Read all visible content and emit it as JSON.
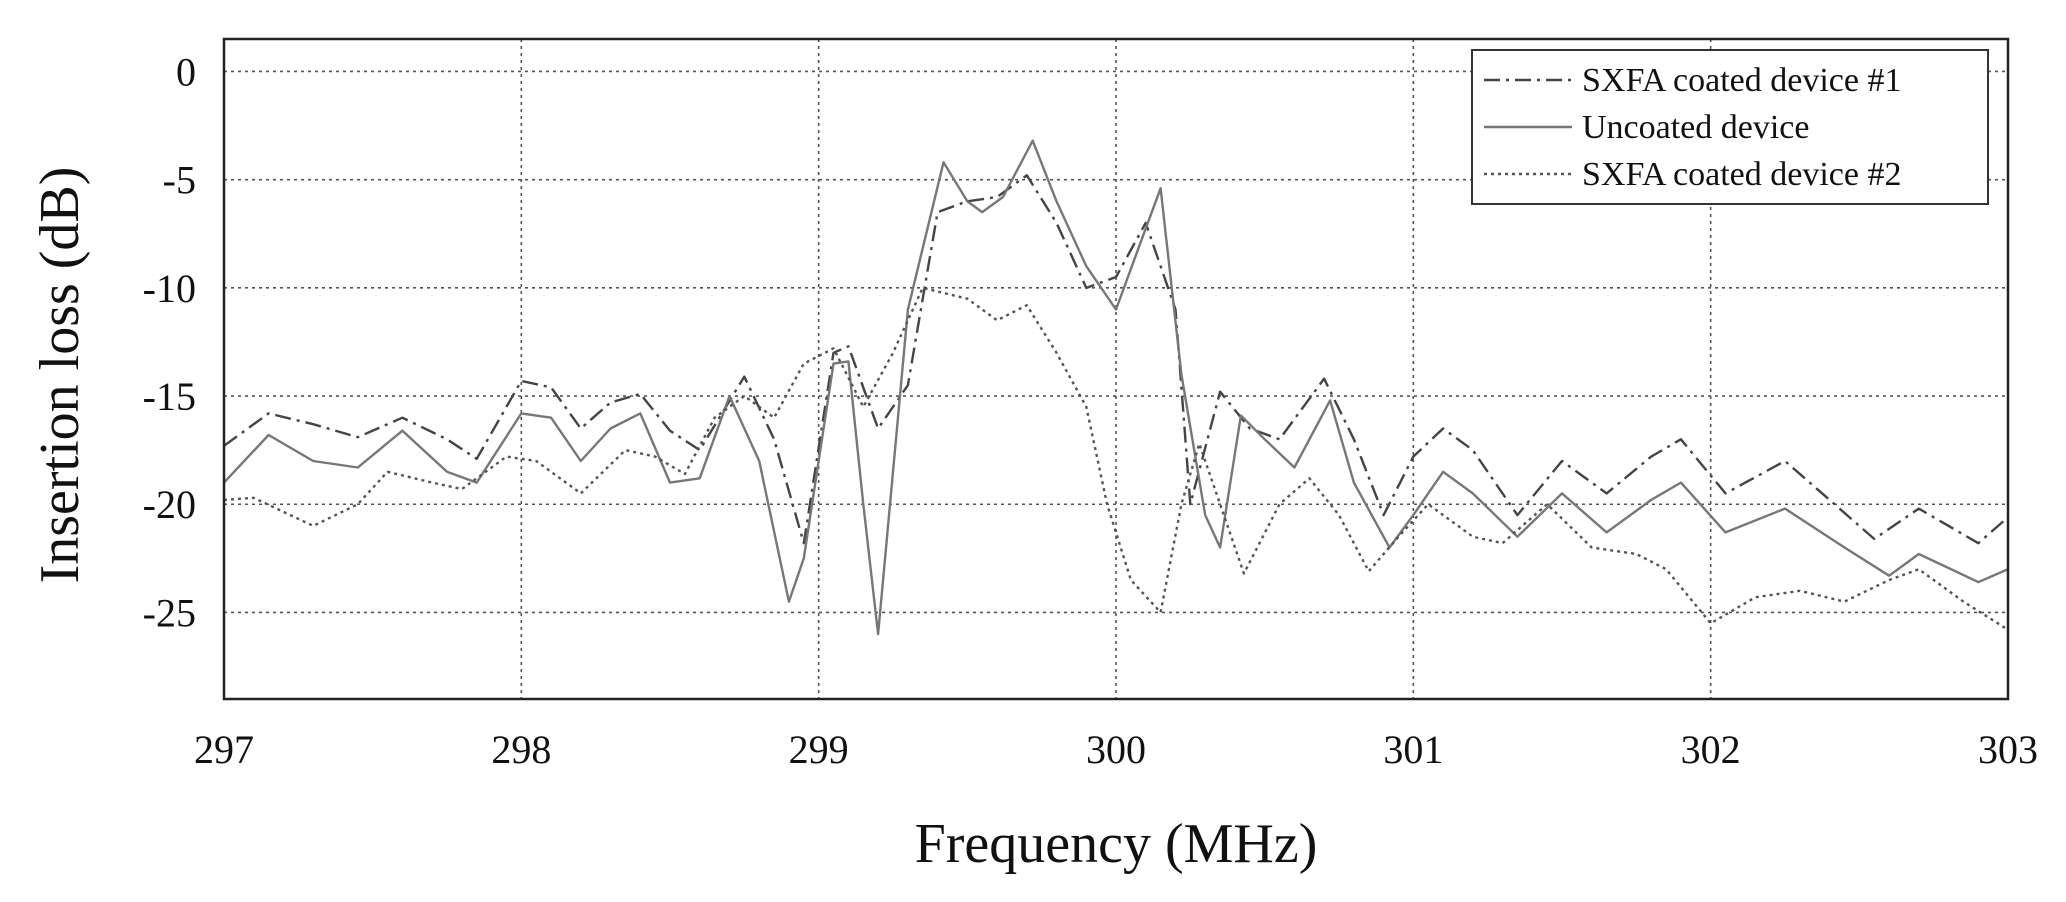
{
  "chart_data": {
    "type": "line",
    "title": "",
    "xlabel": "Frequency (MHz)",
    "ylabel": "Insertion loss (dB)",
    "xlim": [
      297,
      303
    ],
    "ylim": [
      -29,
      1.5
    ],
    "xticks": [
      297,
      298,
      299,
      300,
      301,
      302,
      303
    ],
    "yticks": [
      0,
      -5,
      -10,
      -15,
      -20,
      -25
    ],
    "xtick_labels": [
      "297",
      "298",
      "299",
      "300",
      "301",
      "302",
      "303"
    ],
    "ytick_labels": [
      "0",
      "-5",
      "-10",
      "-15",
      "-20",
      "-25"
    ],
    "grid": true,
    "legend_position": "top-right",
    "legend": [
      "SXFA coated device #1",
      "Uncoated device",
      "SXFA coated device #2"
    ],
    "series": [
      {
        "name": "SXFA coated device #1",
        "style": "dashdot",
        "color": "#444444",
        "points": [
          [
            297.0,
            -17.3
          ],
          [
            297.15,
            -15.8
          ],
          [
            297.3,
            -16.3
          ],
          [
            297.45,
            -16.9
          ],
          [
            297.6,
            -16.0
          ],
          [
            297.75,
            -17.0
          ],
          [
            297.85,
            -17.9
          ],
          [
            298.0,
            -14.3
          ],
          [
            298.1,
            -14.6
          ],
          [
            298.2,
            -16.5
          ],
          [
            298.3,
            -15.3
          ],
          [
            298.4,
            -14.9
          ],
          [
            298.5,
            -16.6
          ],
          [
            298.6,
            -17.5
          ],
          [
            298.75,
            -14.1
          ],
          [
            298.85,
            -17.0
          ],
          [
            298.95,
            -21.8
          ],
          [
            299.05,
            -13.0
          ],
          [
            299.1,
            -12.7
          ],
          [
            299.2,
            -16.5
          ],
          [
            299.3,
            -14.5
          ],
          [
            299.4,
            -6.5
          ],
          [
            299.5,
            -6.0
          ],
          [
            299.6,
            -5.8
          ],
          [
            299.7,
            -4.8
          ],
          [
            299.8,
            -7.0
          ],
          [
            299.9,
            -10.0
          ],
          [
            300.0,
            -9.5
          ],
          [
            300.1,
            -7.0
          ],
          [
            300.2,
            -11.0
          ],
          [
            300.25,
            -20.0
          ],
          [
            300.35,
            -14.8
          ],
          [
            300.45,
            -16.5
          ],
          [
            300.55,
            -17.0
          ],
          [
            300.7,
            -14.2
          ],
          [
            300.8,
            -17.0
          ],
          [
            300.9,
            -20.5
          ],
          [
            301.0,
            -17.8
          ],
          [
            301.1,
            -16.5
          ],
          [
            301.2,
            -17.5
          ],
          [
            301.35,
            -20.5
          ],
          [
            301.5,
            -18.0
          ],
          [
            301.65,
            -19.5
          ],
          [
            301.8,
            -17.8
          ],
          [
            301.9,
            -17.0
          ],
          [
            302.05,
            -19.5
          ],
          [
            302.25,
            -18.0
          ],
          [
            302.4,
            -19.8
          ],
          [
            302.55,
            -21.6
          ],
          [
            302.7,
            -20.2
          ],
          [
            302.9,
            -21.8
          ],
          [
            303.0,
            -20.6
          ]
        ]
      },
      {
        "name": "Uncoated device",
        "style": "solid",
        "color": "#777777",
        "points": [
          [
            297.0,
            -19.0
          ],
          [
            297.15,
            -16.8
          ],
          [
            297.3,
            -18.0
          ],
          [
            297.45,
            -18.3
          ],
          [
            297.6,
            -16.6
          ],
          [
            297.75,
            -18.5
          ],
          [
            297.85,
            -19.0
          ],
          [
            298.0,
            -15.8
          ],
          [
            298.1,
            -16.0
          ],
          [
            298.2,
            -18.0
          ],
          [
            298.3,
            -16.5
          ],
          [
            298.4,
            -15.8
          ],
          [
            298.5,
            -19.0
          ],
          [
            298.6,
            -18.8
          ],
          [
            298.7,
            -15.0
          ],
          [
            298.8,
            -18.0
          ],
          [
            298.9,
            -24.5
          ],
          [
            298.95,
            -22.5
          ],
          [
            299.05,
            -13.5
          ],
          [
            299.1,
            -13.4
          ],
          [
            299.15,
            -20.0
          ],
          [
            299.2,
            -26.0
          ],
          [
            299.3,
            -11.0
          ],
          [
            299.42,
            -4.2
          ],
          [
            299.5,
            -6.0
          ],
          [
            299.55,
            -6.5
          ],
          [
            299.62,
            -5.8
          ],
          [
            299.72,
            -3.2
          ],
          [
            299.8,
            -6.0
          ],
          [
            299.9,
            -9.0
          ],
          [
            300.0,
            -11.0
          ],
          [
            300.08,
            -8.0
          ],
          [
            300.15,
            -5.4
          ],
          [
            300.22,
            -14.0
          ],
          [
            300.3,
            -20.5
          ],
          [
            300.35,
            -22.0
          ],
          [
            300.42,
            -15.9
          ],
          [
            300.5,
            -17.0
          ],
          [
            300.6,
            -18.3
          ],
          [
            300.72,
            -15.2
          ],
          [
            300.8,
            -19.0
          ],
          [
            300.92,
            -22.0
          ],
          [
            301.0,
            -20.5
          ],
          [
            301.1,
            -18.5
          ],
          [
            301.2,
            -19.5
          ],
          [
            301.35,
            -21.5
          ],
          [
            301.5,
            -19.5
          ],
          [
            301.65,
            -21.3
          ],
          [
            301.8,
            -19.8
          ],
          [
            301.9,
            -19.0
          ],
          [
            302.05,
            -21.3
          ],
          [
            302.25,
            -20.2
          ],
          [
            302.45,
            -22.0
          ],
          [
            302.6,
            -23.3
          ],
          [
            302.7,
            -22.3
          ],
          [
            302.9,
            -23.6
          ],
          [
            303.0,
            -23.0
          ]
        ]
      },
      {
        "name": "SXFA coated device #2",
        "style": "dotted",
        "color": "#555555",
        "points": [
          [
            297.0,
            -19.8
          ],
          [
            297.1,
            -19.7
          ],
          [
            297.3,
            -21.0
          ],
          [
            297.45,
            -20.0
          ],
          [
            297.55,
            -18.5
          ],
          [
            297.7,
            -19.0
          ],
          [
            297.8,
            -19.3
          ],
          [
            297.95,
            -17.8
          ],
          [
            298.05,
            -18.0
          ],
          [
            298.2,
            -19.5
          ],
          [
            298.35,
            -17.5
          ],
          [
            298.45,
            -17.8
          ],
          [
            298.55,
            -18.6
          ],
          [
            298.65,
            -16.0
          ],
          [
            298.75,
            -15.0
          ],
          [
            298.85,
            -16.0
          ],
          [
            298.95,
            -13.5
          ],
          [
            299.05,
            -12.8
          ],
          [
            299.15,
            -15.5
          ],
          [
            299.25,
            -13.0
          ],
          [
            299.35,
            -10.0
          ],
          [
            299.5,
            -10.5
          ],
          [
            299.6,
            -11.5
          ],
          [
            299.7,
            -10.8
          ],
          [
            299.8,
            -13.0
          ],
          [
            299.9,
            -15.5
          ],
          [
            299.97,
            -20.0
          ],
          [
            300.05,
            -23.5
          ],
          [
            300.15,
            -25.0
          ],
          [
            300.22,
            -20.0
          ],
          [
            300.28,
            -17.2
          ],
          [
            300.35,
            -20.0
          ],
          [
            300.43,
            -23.2
          ],
          [
            300.55,
            -20.0
          ],
          [
            300.65,
            -18.8
          ],
          [
            300.75,
            -20.5
          ],
          [
            300.85,
            -23.1
          ],
          [
            300.95,
            -21.5
          ],
          [
            301.05,
            -20.0
          ],
          [
            301.2,
            -21.5
          ],
          [
            301.3,
            -21.8
          ],
          [
            301.45,
            -20.0
          ],
          [
            301.6,
            -22.0
          ],
          [
            301.75,
            -22.3
          ],
          [
            301.85,
            -23.0
          ],
          [
            302.0,
            -25.5
          ],
          [
            302.15,
            -24.3
          ],
          [
            302.3,
            -24.0
          ],
          [
            302.45,
            -24.5
          ],
          [
            302.6,
            -23.5
          ],
          [
            302.7,
            -23.0
          ],
          [
            302.85,
            -24.5
          ],
          [
            303.0,
            -25.8
          ]
        ]
      }
    ]
  }
}
